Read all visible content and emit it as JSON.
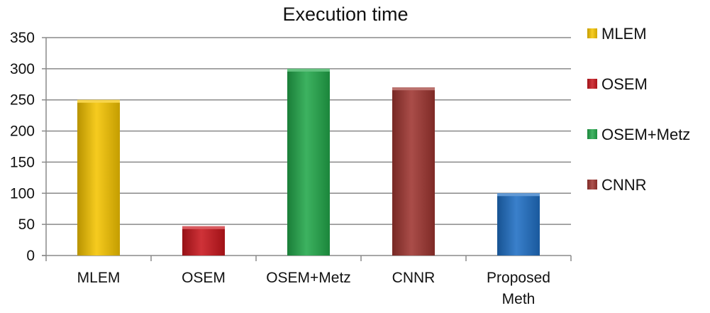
{
  "chart_data": {
    "type": "bar",
    "title": "Execution time",
    "categories": [
      "MLEM",
      "OSEM",
      "OSEM+Metz",
      "CNNR",
      "Proposed Meth"
    ],
    "category_lines": [
      [
        "MLEM"
      ],
      [
        "OSEM"
      ],
      [
        "OSEM+Metz"
      ],
      [
        "CNNR"
      ],
      [
        "Proposed",
        "Meth"
      ]
    ],
    "values": [
      250,
      47,
      300,
      270,
      100
    ],
    "bar_colors": [
      "#f5c400",
      "#c8161d",
      "#22a84a",
      "#9e3530",
      "#1f6fc4"
    ],
    "xlabel": "",
    "ylabel": "",
    "ylim": [
      0,
      350
    ],
    "yticks": [
      0,
      50,
      100,
      150,
      200,
      250,
      300,
      350
    ],
    "grid": true,
    "legend_position": "right",
    "legend": [
      {
        "label": "MLEM",
        "color": "#f5c400"
      },
      {
        "label": "OSEM",
        "color": "#c8161d"
      },
      {
        "label": "OSEM+Metz",
        "color": "#22a84a"
      },
      {
        "label": "CNNR",
        "color": "#9e3530"
      }
    ]
  }
}
